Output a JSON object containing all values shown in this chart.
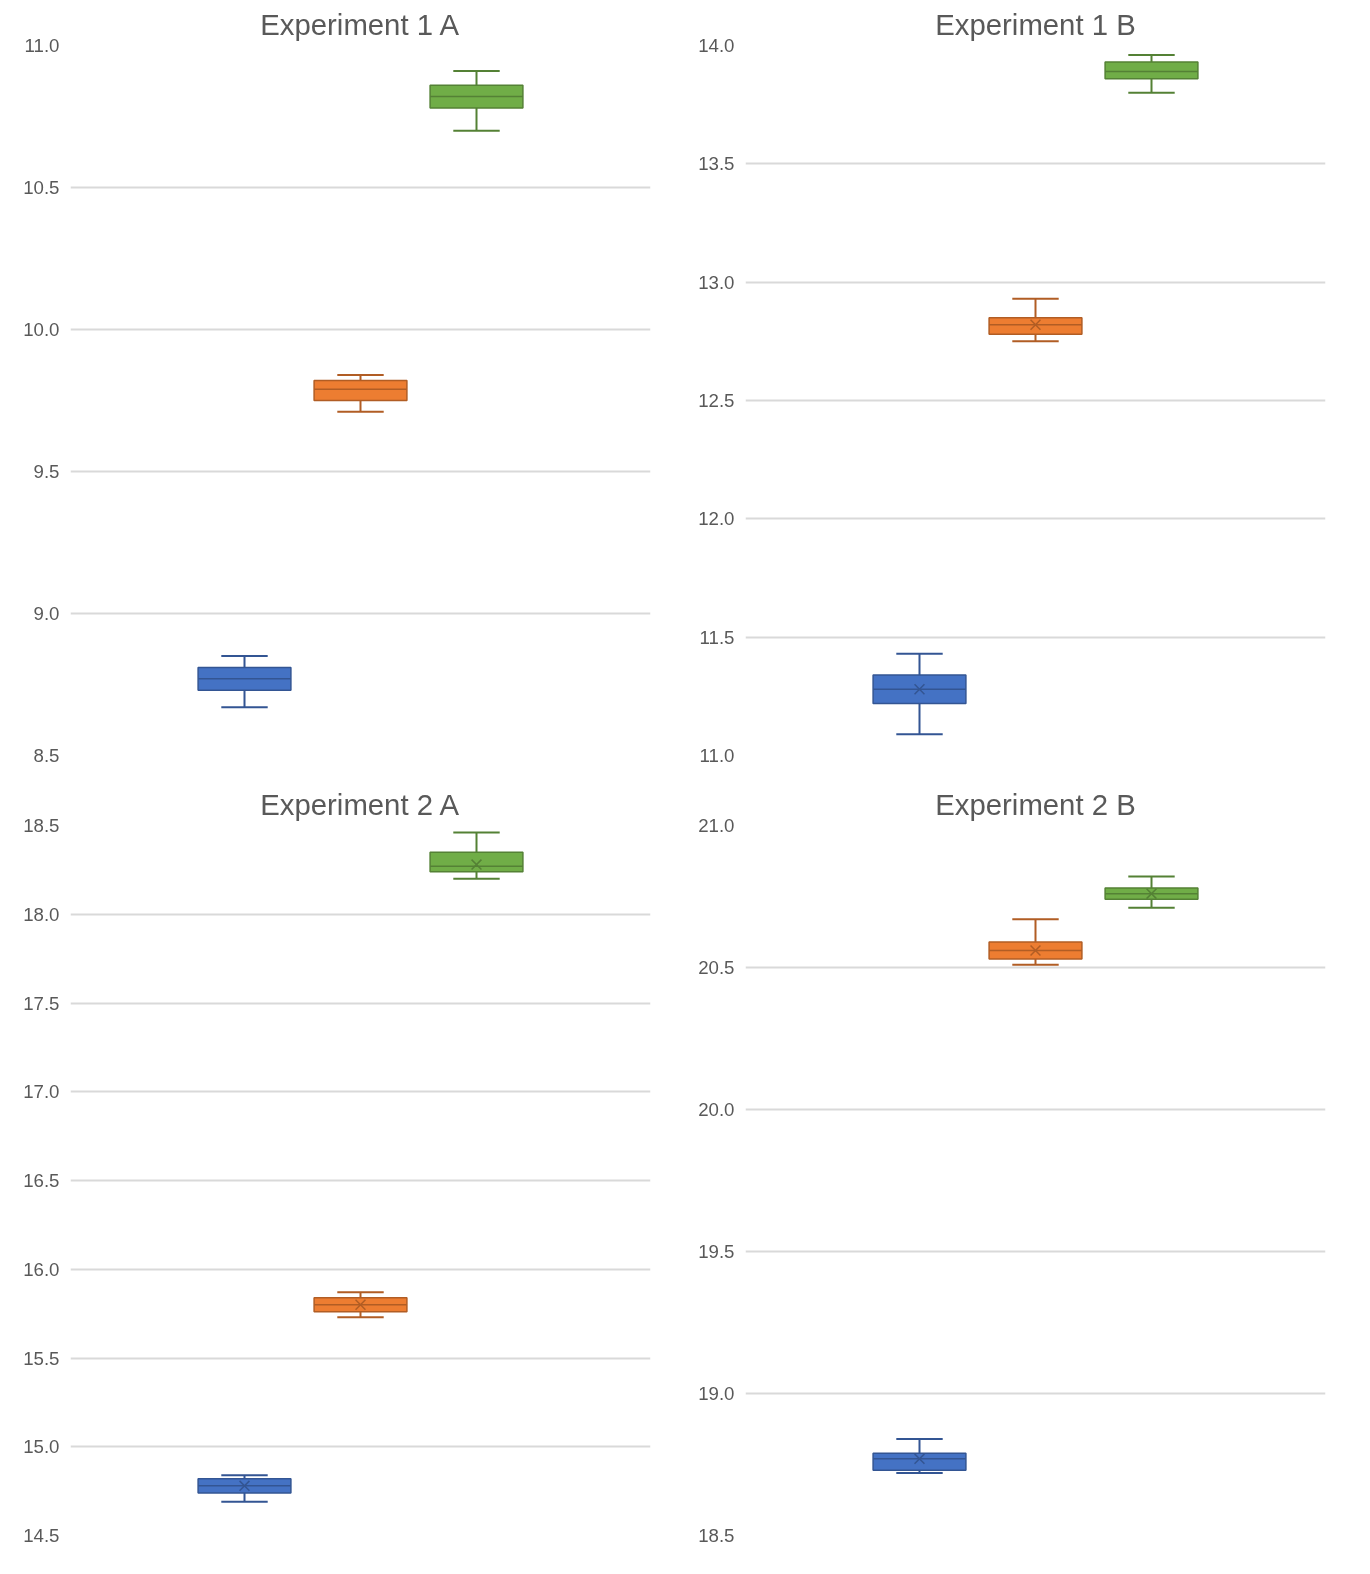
{
  "chart_data": [
    {
      "type": "box",
      "title": "Experiment 1 A",
      "categories": [
        null
      ],
      "ylim": [
        8.5,
        11.0
      ],
      "yticks": [
        {
          "value": 8.5,
          "label": "8.5"
        },
        {
          "value": 9.0,
          "label": "9.0"
        },
        {
          "value": 9.5,
          "label": "9.5"
        },
        {
          "value": 10.0,
          "label": "10.0"
        },
        {
          "value": 10.5,
          "label": "10.5"
        },
        {
          "value": 11.0,
          "label": "11.0"
        }
      ],
      "grid": "y",
      "tick_labels": "y",
      "series": [
        {
          "color": "#4472c4",
          "boxes": [
            {
              "low": 8.67,
              "q1": 8.73,
              "median": 8.77,
              "q3": 8.81,
              "high": 8.85
            }
          ]
        },
        {
          "color": "#ed7d31",
          "boxes": [
            {
              "low": 9.71,
              "q1": 9.75,
              "median": 9.79,
              "q3": 9.82,
              "high": 9.84
            }
          ]
        },
        {
          "color": "#70ad47",
          "boxes": [
            {
              "low": 10.7,
              "q1": 10.78,
              "median": 10.82,
              "q3": 10.86,
              "high": 10.91
            }
          ]
        }
      ]
    },
    {
      "type": "box",
      "title": "Experiment 1 B",
      "categories": [
        null
      ],
      "ylim": [
        11.0,
        14.0
      ],
      "yticks": [
        {
          "value": 11.0,
          "label": "11.0"
        },
        {
          "value": 11.5,
          "label": "11.5"
        },
        {
          "value": 12.0,
          "label": "12.0"
        },
        {
          "value": 12.5,
          "label": "12.5"
        },
        {
          "value": 13.0,
          "label": "13.0"
        },
        {
          "value": 13.5,
          "label": "13.5"
        },
        {
          "value": 14.0,
          "label": "14.0"
        }
      ],
      "grid": "y",
      "tick_labels": "y",
      "series": [
        {
          "color": "#4472c4",
          "boxes": [
            {
              "low": 11.09,
              "q1": 11.22,
              "median": 11.28,
              "q3": 11.34,
              "high": 11.43,
              "mean": 11.28
            }
          ]
        },
        {
          "color": "#ed7d31",
          "boxes": [
            {
              "low": 12.75,
              "q1": 12.78,
              "median": 12.82,
              "q3": 12.85,
              "high": 12.93,
              "mean": 12.82
            }
          ]
        },
        {
          "color": "#70ad47",
          "boxes": [
            {
              "low": 13.8,
              "q1": 13.86,
              "median": 13.89,
              "q3": 13.93,
              "high": 13.96
            }
          ]
        }
      ]
    },
    {
      "type": "box",
      "title": "Experiment 2 A",
      "categories": [
        null
      ],
      "ylim": [
        14.5,
        18.5
      ],
      "yticks": [
        {
          "value": 14.5,
          "label": "14.5"
        },
        {
          "value": 15.0,
          "label": "15.0"
        },
        {
          "value": 15.5,
          "label": "15.5"
        },
        {
          "value": 16.0,
          "label": "16.0"
        },
        {
          "value": 16.5,
          "label": "16.5"
        },
        {
          "value": 17.0,
          "label": "17.0"
        },
        {
          "value": 17.5,
          "label": "17.5"
        },
        {
          "value": 18.0,
          "label": "18.0"
        },
        {
          "value": 18.5,
          "label": "18.5"
        }
      ],
      "grid": "y",
      "tick_labels": "y",
      "series": [
        {
          "color": "#4472c4",
          "boxes": [
            {
              "low": 14.69,
              "q1": 14.74,
              "median": 14.78,
              "q3": 14.82,
              "high": 14.84,
              "mean": 14.78
            }
          ]
        },
        {
          "color": "#ed7d31",
          "boxes": [
            {
              "low": 15.73,
              "q1": 15.76,
              "median": 15.8,
              "q3": 15.84,
              "high": 15.87,
              "mean": 15.8
            }
          ]
        },
        {
          "color": "#70ad47",
          "boxes": [
            {
              "low": 18.2,
              "q1": 18.24,
              "median": 18.27,
              "q3": 18.35,
              "high": 18.46,
              "mean": 18.28
            }
          ]
        }
      ]
    },
    {
      "type": "box",
      "title": "Experiment 2 B",
      "categories": [
        null
      ],
      "ylim": [
        18.5,
        21.0
      ],
      "yticks": [
        {
          "value": 18.5,
          "label": "18.5"
        },
        {
          "value": 19.0,
          "label": "19.0"
        },
        {
          "value": 19.5,
          "label": "19.5"
        },
        {
          "value": 20.0,
          "label": "20.0"
        },
        {
          "value": 20.5,
          "label": "20.5"
        },
        {
          "value": 21.0,
          "label": "21.0"
        }
      ],
      "grid": "y",
      "tick_labels": "y",
      "series": [
        {
          "color": "#4472c4",
          "boxes": [
            {
              "low": 18.72,
              "q1": 18.73,
              "median": 18.77,
              "q3": 18.79,
              "high": 18.84,
              "mean": 18.77
            }
          ]
        },
        {
          "color": "#ed7d31",
          "boxes": [
            {
              "low": 20.51,
              "q1": 20.53,
              "median": 20.56,
              "q3": 20.59,
              "high": 20.67,
              "mean": 20.56
            }
          ]
        },
        {
          "color": "#70ad47",
          "boxes": [
            {
              "low": 20.71,
              "q1": 20.74,
              "median": 20.76,
              "q3": 20.78,
              "high": 20.82,
              "mean": 20.76
            }
          ]
        }
      ]
    }
  ]
}
